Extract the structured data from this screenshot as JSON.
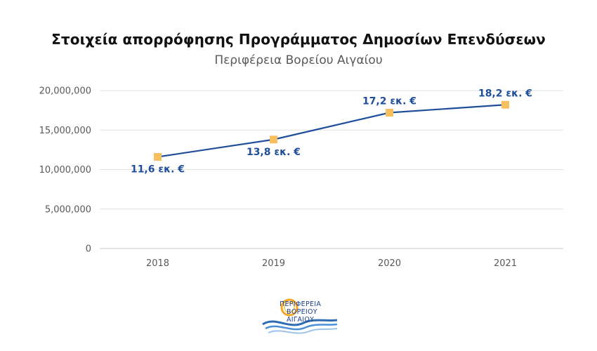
{
  "chart_data": {
    "type": "line",
    "title": "Στοιχεία απορρόφησης Προγράμματος Δημοσίων Επενδύσεων",
    "subtitle": "Περιφέρεια Βορείου Αιγαίου",
    "categories": [
      "2018",
      "2019",
      "2020",
      "2021"
    ],
    "series": [
      {
        "values": [
          11600000,
          13800000,
          17200000,
          18200000
        ],
        "data_labels": [
          "11,6 εκ. €",
          "13,8 εκ. €",
          "17,2 εκ. €",
          "18,2 εκ. €"
        ],
        "line_color": "#1f4e9a",
        "marker_color": "#f6c061",
        "marker": "square"
      }
    ],
    "label_placement": [
      "below",
      "below",
      "above",
      "above"
    ],
    "ylim": [
      0,
      20000000
    ],
    "yticks": [
      0,
      5000000,
      10000000,
      15000000,
      20000000
    ],
    "ytick_labels": [
      "0",
      "5,000,000",
      "10,000,000",
      "15,000,000",
      "20,000,000"
    ],
    "xlabel": "",
    "ylabel": "",
    "grid": true,
    "label_color": "#1f4e9a",
    "grid_color": "#e0e0e0"
  },
  "logo": {
    "line1": "ΠΕΡΙΦΕΡΕΙΑ",
    "line2": "ΒΟΡΕΙΟΥ",
    "line3": "ΑΙΓΑΙΟΥ"
  }
}
